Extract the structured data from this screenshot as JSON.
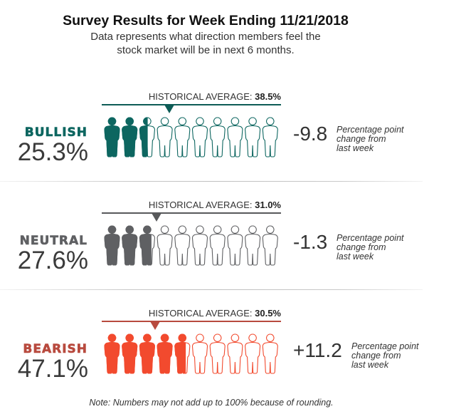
{
  "header": {
    "title": "Survey Results for Week Ending 11/21/2018",
    "subtitle_line1": "Data represents what direction members feel the",
    "subtitle_line2": "stock market will be in next 6 months."
  },
  "hist_prefix": "HISTORICAL AVERAGE: ",
  "change_note": [
    "Percentage point",
    "change from",
    "last week"
  ],
  "footer_note": "Note: Numbers may not add up to 100% because of rounding.",
  "chart_data": {
    "type": "pictogram",
    "title": "Survey Results for Week Ending 11/21/2018",
    "subtitle": "Data represents what direction members feel the stock market will be in next 6 months.",
    "icons_per_row": 10,
    "percent_per_icon": 10,
    "scale_range": [
      0,
      100
    ],
    "series": [
      {
        "name": "BULLISH",
        "value": 25.3,
        "value_label": "25.3%",
        "historical_average": 38.5,
        "historical_label": "38.5%",
        "change": -9.8,
        "change_label": "-9.8",
        "color": "#0d6660",
        "line_color": "#0d5c56"
      },
      {
        "name": "NEUTRAL",
        "value": 27.6,
        "value_label": "27.6%",
        "historical_average": 31.0,
        "historical_label": "31.0%",
        "change": -1.3,
        "change_label": "-1.3",
        "color": "#5f6063",
        "line_color": "#58595b"
      },
      {
        "name": "BEARISH",
        "value": 47.1,
        "value_label": "47.1%",
        "historical_average": 30.5,
        "historical_label": "30.5%",
        "change": 11.2,
        "change_label": "+11.2",
        "color": "#f24a2e",
        "line_color": "#b84a3e",
        "label_color": "#b84a3e"
      }
    ],
    "footnote": "Note: Numbers may not add up to 100% because of rounding."
  }
}
